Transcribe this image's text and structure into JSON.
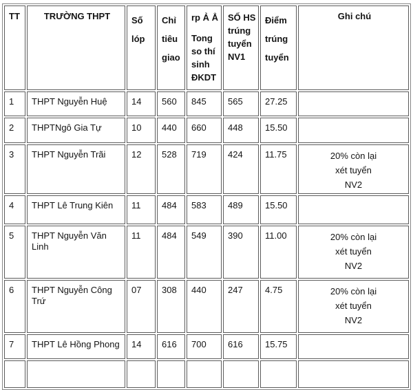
{
  "table": {
    "columns": [
      {
        "key": "tt",
        "label_lines": [
          "TT"
        ]
      },
      {
        "key": "truong",
        "label_lines": [
          "TRƯỜNG THPT"
        ]
      },
      {
        "key": "so_lop",
        "label_lines": [
          "Số lóp"
        ]
      },
      {
        "key": "chi_tieu",
        "label_lines": [
          "Chỉ tiêu giao"
        ]
      },
      {
        "key": "tong_so",
        "label_lines": [
          "rp Ả Ẳ",
          "Tong so thí sinh ĐKDT"
        ]
      },
      {
        "key": "so_hs",
        "label_lines": [
          "SỐ HS trúng tuyển NV1"
        ]
      },
      {
        "key": "diem",
        "label_lines": [
          "Điểm trúng tuyển"
        ]
      },
      {
        "key": "ghi_chu",
        "label_lines": [
          "Ghi chú"
        ]
      }
    ],
    "rows": [
      {
        "tt": "1",
        "truong": "THPT Nguyễn Huệ",
        "so_lop": "14",
        "chi_tieu": "560",
        "tong_so": "845",
        "so_hs": "565",
        "diem": "27.25",
        "ghi_chu": []
      },
      {
        "tt": "2",
        "truong": "THPTNgô Gia Tự",
        "so_lop": "10",
        "chi_tieu": "440",
        "tong_so": "660",
        "so_hs": "448",
        "diem": "15.50",
        "ghi_chu": []
      },
      {
        "tt": "3",
        "truong": "THPT Nguyễn Trãi",
        "so_lop": "12",
        "chi_tieu": "528",
        "tong_so": "719",
        "so_hs": "424",
        "diem": "11.75",
        "ghi_chu": [
          "20% còn lại",
          "xét tuyển",
          "NV2"
        ]
      },
      {
        "tt": "4",
        "truong": "THPT Lê Trung Kiên",
        "so_lop": "11",
        "chi_tieu": "484",
        "tong_so": "583",
        "so_hs": "489",
        "diem": "15.50",
        "ghi_chu": []
      },
      {
        "tt": "5",
        "truong": "THPT Nguyễn Văn Linh",
        "so_lop": "11",
        "chi_tieu": "484",
        "tong_so": "549",
        "so_hs": "390",
        "diem": "11.00",
        "ghi_chu": [
          "20% còn lại",
          "xét tuyển",
          "NV2"
        ]
      },
      {
        "tt": "6",
        "truong": "THPT Nguyễn Công Trứ",
        "so_lop": "07",
        "chi_tieu": "308",
        "tong_so": "440",
        "so_hs": "247",
        "diem": "4.75",
        "ghi_chu": [
          "20% còn lại",
          "xét tuyển",
          "NV2"
        ]
      },
      {
        "tt": "7",
        "truong": "THPT Lê Hồng Phong",
        "so_lop": "14",
        "chi_tieu": "616",
        "tong_so": "700",
        "so_hs": "616",
        "diem": "15.75",
        "ghi_chu": []
      }
    ]
  },
  "colors": {
    "text": "#141414",
    "table_outer_border": "#868686",
    "cell_border": "#5a5a5a",
    "background": "#ffffff"
  }
}
